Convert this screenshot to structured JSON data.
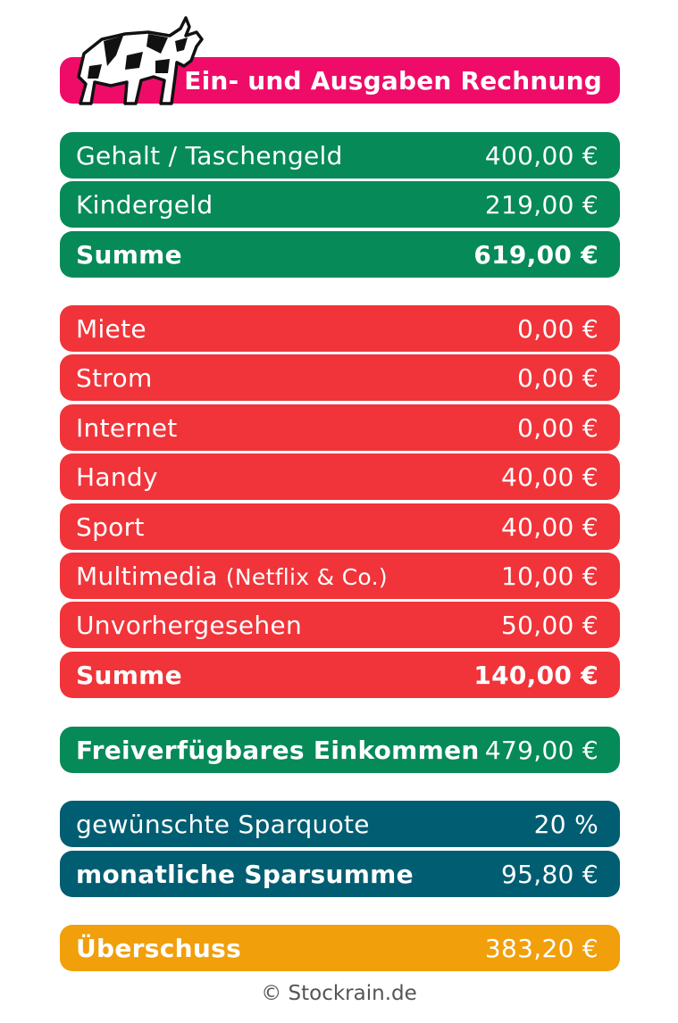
{
  "title": "Ein- und Ausgaben Rechnung",
  "logo": {
    "icon": "bull-icon"
  },
  "income": {
    "items": [
      {
        "label": "Gehalt / Taschengeld",
        "value": "400,00 €"
      },
      {
        "label": "Kindergeld",
        "value": "219,00 €"
      }
    ],
    "sum_label": "Summe",
    "sum_value": "619,00 €"
  },
  "expenses": {
    "items": [
      {
        "label": "Miete",
        "value": "0,00 €"
      },
      {
        "label": "Strom",
        "value": "0,00 €"
      },
      {
        "label": "Internet",
        "value": "0,00 €"
      },
      {
        "label": "Handy",
        "value": "40,00 €"
      },
      {
        "label": "Sport",
        "value": "40,00 €"
      },
      {
        "label": "Multimedia",
        "note": "(Netflix & Co.)",
        "value": "10,00 €"
      },
      {
        "label": "Unvorhergesehen",
        "value": "50,00 €"
      }
    ],
    "sum_label": "Summe",
    "sum_value": "140,00 €"
  },
  "free_income": {
    "label": "Freiverfügbares Einkommen",
    "value": "479,00 €"
  },
  "savings": {
    "rate_label": "gewünschte Sparquote",
    "rate_value": "20 %",
    "monthly_label": "monatliche Sparsumme",
    "monthly_value": "95,80 €"
  },
  "surplus": {
    "label": "Überschuss",
    "value": "383,20 €"
  },
  "footer": "© Stockrain.de",
  "colors": {
    "header": "#ee0c68",
    "income": "#058a58",
    "expenses": "#f0343a",
    "savings": "#015e72",
    "surplus": "#f19f0a"
  }
}
